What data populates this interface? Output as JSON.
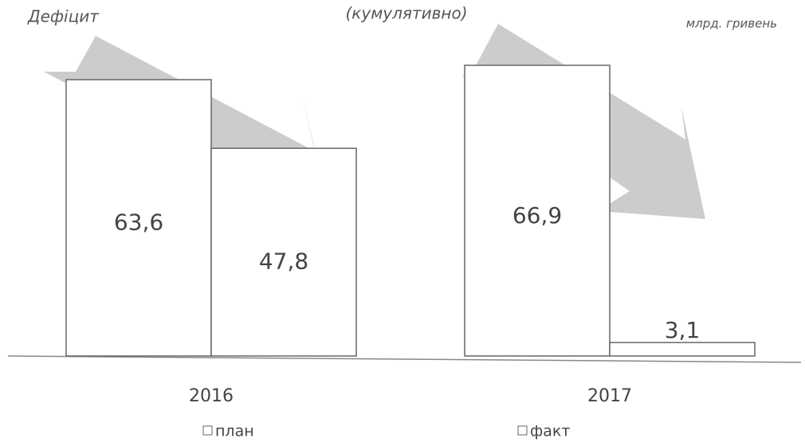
{
  "chart_data": {
    "type": "bar",
    "title": "(кумулятивно)",
    "subtitle": "Дефіцит",
    "unit_label": "млрд. гривень",
    "categories": [
      "2016",
      "2017"
    ],
    "series": [
      {
        "name": "план",
        "color": "#ffffff",
        "values": [
          63.6,
          66.9
        ],
        "value_labels": [
          "63,6",
          "66,9"
        ]
      },
      {
        "name": "факт",
        "color": "#ffffff",
        "values": [
          47.8,
          3.1
        ],
        "value_labels": [
          "47,8",
          "3,1"
        ]
      }
    ]
  }
}
